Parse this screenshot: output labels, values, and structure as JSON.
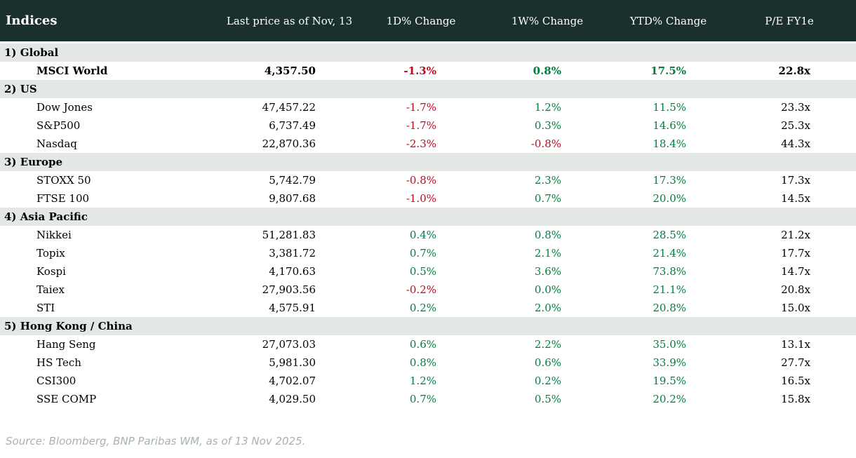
{
  "chart_data": {
    "type": "table",
    "title": "Indices",
    "columns": [
      "Indices",
      "Last price as of Nov, 13",
      "1D% Change",
      "1W% Change",
      "YTD% Change",
      "P/E FY1e"
    ],
    "sections": [
      {
        "label": "1) Global",
        "rows": [
          {
            "name": "MSCI World",
            "price": "4,357.50",
            "d1": "-1.3%",
            "w1": "0.8%",
            "ytd": "17.5%",
            "pe": "22.8x",
            "bold": true
          }
        ]
      },
      {
        "label": "2) US",
        "rows": [
          {
            "name": "Dow Jones",
            "price": "47,457.22",
            "d1": "-1.7%",
            "w1": "1.2%",
            "ytd": "11.5%",
            "pe": "23.3x",
            "bold": false
          },
          {
            "name": "S&P500",
            "price": "6,737.49",
            "d1": "-1.7%",
            "w1": "0.3%",
            "ytd": "14.6%",
            "pe": "25.3x",
            "bold": false
          },
          {
            "name": "Nasdaq",
            "price": "22,870.36",
            "d1": "-2.3%",
            "w1": "-0.8%",
            "ytd": "18.4%",
            "pe": "44.3x",
            "bold": false
          }
        ]
      },
      {
        "label": "3) Europe",
        "rows": [
          {
            "name": "STOXX 50",
            "price": "5,742.79",
            "d1": "-0.8%",
            "w1": "2.3%",
            "ytd": "17.3%",
            "pe": "17.3x",
            "bold": false
          },
          {
            "name": "FTSE 100",
            "price": "9,807.68",
            "d1": "-1.0%",
            "w1": "0.7%",
            "ytd": "20.0%",
            "pe": "14.5x",
            "bold": false
          }
        ]
      },
      {
        "label": "4) Asia Pacific",
        "rows": [
          {
            "name": "Nikkei",
            "price": "51,281.83",
            "d1": "0.4%",
            "w1": "0.8%",
            "ytd": "28.5%",
            "pe": "21.2x",
            "bold": false
          },
          {
            "name": "Topix",
            "price": "3,381.72",
            "d1": "0.7%",
            "w1": "2.1%",
            "ytd": "21.4%",
            "pe": "17.7x",
            "bold": false
          },
          {
            "name": "Kospi",
            "price": "4,170.63",
            "d1": "0.5%",
            "w1": "3.6%",
            "ytd": "73.8%",
            "pe": "14.7x",
            "bold": false
          },
          {
            "name": "Taiex",
            "price": "27,903.56",
            "d1": "-0.2%",
            "w1": "0.0%",
            "ytd": "21.1%",
            "pe": "20.8x",
            "bold": false
          },
          {
            "name": "STI",
            "price": "4,575.91",
            "d1": "0.2%",
            "w1": "2.0%",
            "ytd": "20.8%",
            "pe": "15.0x",
            "bold": false
          }
        ]
      },
      {
        "label": "5) Hong Kong / China",
        "rows": [
          {
            "name": "Hang Seng",
            "price": "27,073.03",
            "d1": "0.6%",
            "w1": "2.2%",
            "ytd": "35.0%",
            "pe": "13.1x",
            "bold": false
          },
          {
            "name": "HS Tech",
            "price": "5,981.30",
            "d1": "0.8%",
            "w1": "0.6%",
            "ytd": "33.9%",
            "pe": "27.7x",
            "bold": false
          },
          {
            "name": "CSI300",
            "price": "4,702.07",
            "d1": "1.2%",
            "w1": "0.2%",
            "ytd": "19.5%",
            "pe": "16.5x",
            "bold": false
          },
          {
            "name": "SSE COMP",
            "price": "4,029.50",
            "d1": "0.7%",
            "w1": "0.5%",
            "ytd": "20.2%",
            "pe": "15.8x",
            "bold": false
          }
        ]
      }
    ],
    "source": "Source: Bloomberg, BNP Paribas WM, as of 13 Nov 2025.",
    "layout": {
      "grid": "off",
      "legend": "none",
      "value_alignment": "right",
      "header_alignment": "center"
    }
  },
  "colors": {
    "header_background": "#1a302c",
    "header_text": "#ffffff",
    "section_background": "#e3e8e4",
    "positive": "#008040",
    "negative": "#bf0a1e",
    "body_text": "#000000",
    "source_text": "#a7b1b6"
  }
}
